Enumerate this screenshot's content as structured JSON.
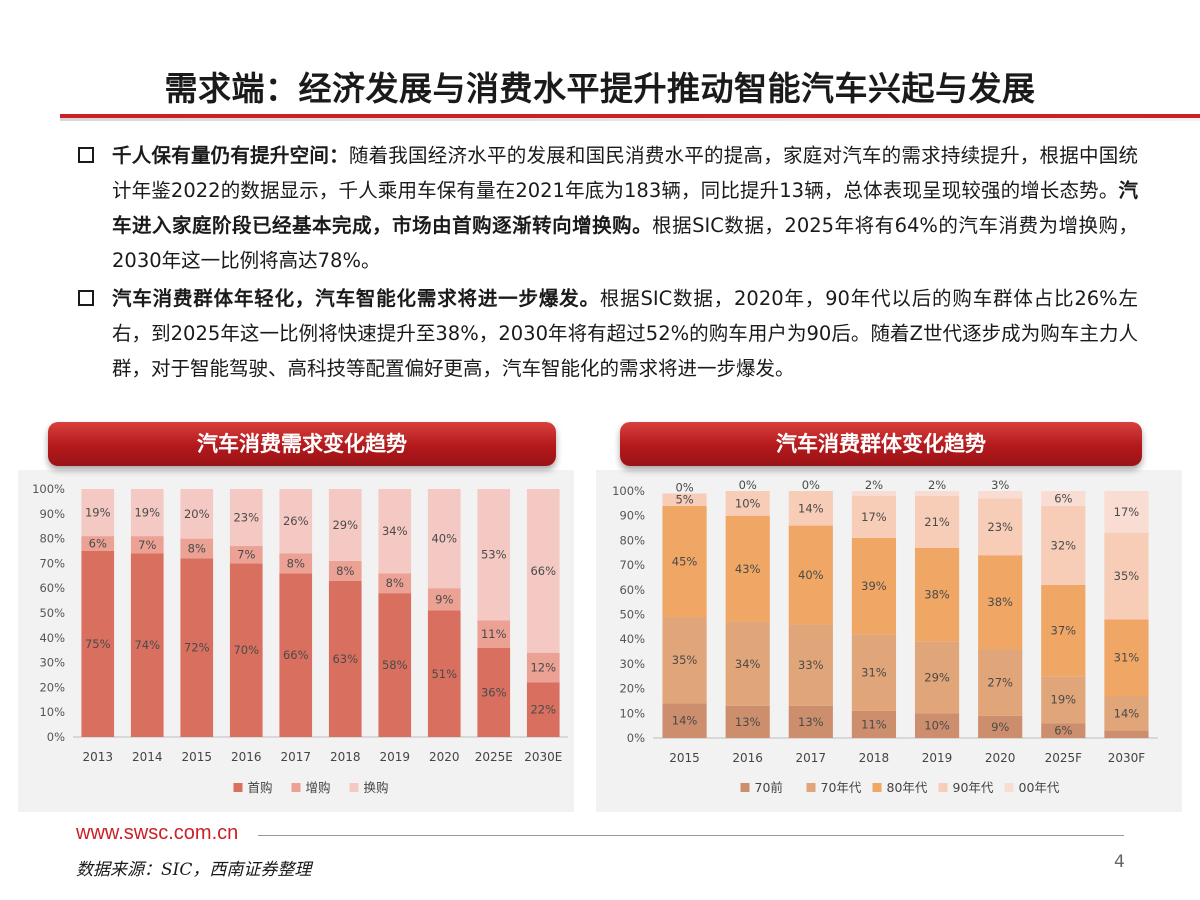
{
  "title": "需求端：经济发展与消费水平提升推动智能汽车兴起与发展",
  "bullets": [
    {
      "segments": [
        {
          "text": "千人保有量仍有提升空间：",
          "bold": true
        },
        {
          "text": "随着我国经济水平的发展和国民消费水平的提高，家庭对汽车的需求持续提升，根据中国统计年鉴2022的数据显示，千人乘用车保有量在2021年底为183辆，同比提升13辆，总体表现呈现较强的增长态势。",
          "bold": false
        },
        {
          "text": "汽车进入家庭阶段已经基本完成，市场由首购逐渐转向增换购。",
          "bold": true
        },
        {
          "text": "根据SIC数据，2025年将有64%的汽车消费为增换购，2030年这一比例将高达78%。",
          "bold": false
        }
      ]
    },
    {
      "segments": [
        {
          "text": "汽车消费群体年轻化，汽车智能化需求将进一步爆发。",
          "bold": true
        },
        {
          "text": "根据SIC数据，2020年，90年代以后的购车群体占比26%左右，到2025年这一比例将快速提升至38%，2030年将有超过52%的购车用户为90后。随着Z世代逐步成为购车主力人群，对于智能驾驶、高科技等配置偏好更高，汽车智能化的需求将进一步爆发。",
          "bold": false
        }
      ]
    }
  ],
  "panels": {
    "left_title": "汽车消费需求变化趋势",
    "right_title": "汽车消费群体变化趋势"
  },
  "chart_data": [
    {
      "type": "bar",
      "stacked": true,
      "percent": true,
      "title": "汽车消费需求变化趋势",
      "categories": [
        "2013",
        "2014",
        "2015",
        "2016",
        "2017",
        "2018",
        "2019",
        "2020",
        "2025E",
        "2030E"
      ],
      "ylim": [
        0,
        100
      ],
      "yticks": [
        "0%",
        "10%",
        "20%",
        "30%",
        "40%",
        "50%",
        "60%",
        "70%",
        "80%",
        "90%",
        "100%"
      ],
      "legend_position": "bottom",
      "series": [
        {
          "name": "首购",
          "color": "#d9705f",
          "values": [
            75,
            74,
            72,
            70,
            66,
            63,
            58,
            51,
            36,
            22
          ]
        },
        {
          "name": "增购",
          "color": "#eba193",
          "values": [
            6,
            7,
            8,
            7,
            8,
            8,
            8,
            9,
            11,
            12
          ]
        },
        {
          "name": "换购",
          "color": "#f5c9c3",
          "values": [
            19,
            19,
            20,
            23,
            26,
            29,
            34,
            40,
            53,
            66
          ]
        }
      ]
    },
    {
      "type": "bar",
      "stacked": true,
      "percent": true,
      "title": "汽车消费群体变化趋势",
      "categories": [
        "2015",
        "2016",
        "2017",
        "2018",
        "2019",
        "2020",
        "2025F",
        "2030F"
      ],
      "ylim": [
        0,
        100
      ],
      "yticks": [
        "0%",
        "10%",
        "20%",
        "30%",
        "40%",
        "50%",
        "60%",
        "70%",
        "80%",
        "90%",
        "100%"
      ],
      "legend_position": "bottom",
      "series": [
        {
          "name": "70前",
          "color": "#cd8e6d",
          "values": [
            14,
            13,
            13,
            11,
            10,
            9,
            6,
            3
          ]
        },
        {
          "name": "70年代",
          "color": "#e0a578",
          "values": [
            35,
            34,
            33,
            31,
            29,
            27,
            19,
            14
          ]
        },
        {
          "name": "80年代",
          "color": "#f0a766",
          "values": [
            45,
            43,
            40,
            39,
            38,
            38,
            37,
            31
          ]
        },
        {
          "name": "90年代",
          "color": "#f7cdb8",
          "values": [
            5,
            10,
            14,
            17,
            21,
            23,
            32,
            35
          ]
        },
        {
          "name": "00年代",
          "color": "#f9dcd2",
          "values": [
            0,
            0,
            0,
            2,
            2,
            3,
            6,
            17
          ]
        }
      ]
    }
  ],
  "footer": {
    "url": "www.swsc.com.cn",
    "source": "数据来源：SIC，西南证券整理",
    "page": "4"
  }
}
